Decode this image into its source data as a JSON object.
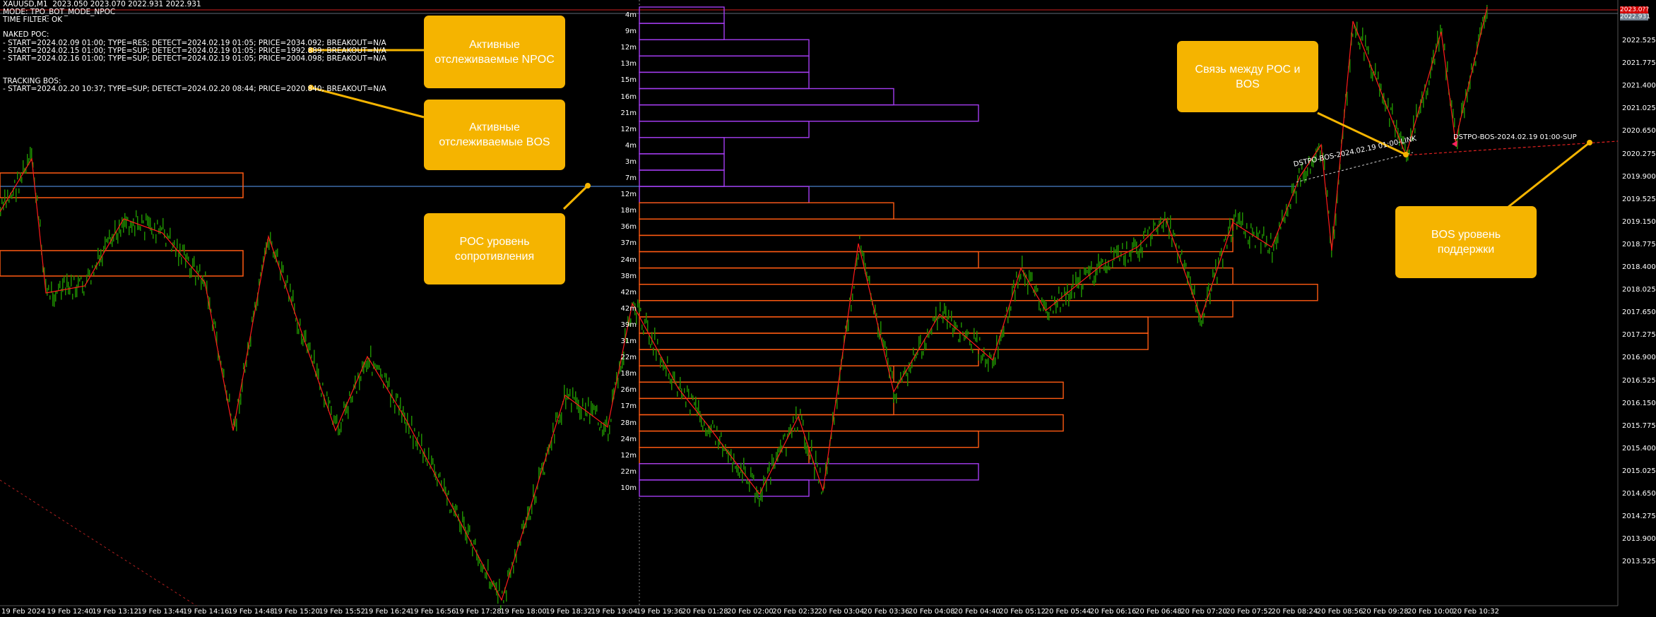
{
  "header": {
    "line1": "XAUUSD,M1  2023.050 2023.070 2022.931 2022.931",
    "line2": "MODE: TPO_BOT_MODE_NPOC",
    "line3": "TIME FILTER: OK"
  },
  "naked_poc": {
    "title": "NAKED POC:",
    "items": [
      "- START=2024.02.09 01:00; TYPE=RES; DETECT=2024.02.19 01:05; PRICE=2034.092; BREAKOUT=N/A",
      "- START=2024.02.15 01:00; TYPE=SUP; DETECT=2024.02.19 01:05; PRICE=1992.889; BREAKOUT=N/A",
      "- START=2024.02.16 01:00; TYPE=SUP; DETECT=2024.02.19 01:05; PRICE=2004.098; BREAKOUT=N/A"
    ]
  },
  "tracking_bos": {
    "title": "TRACKING BOS:",
    "items": [
      "- START=2024.02.20 10:37; TYPE=SUP; DETECT=2024.02.20 08:44; PRICE=2020.840; BREAKOUT=N/A"
    ]
  },
  "callouts": {
    "npoc": "Активные отслеживаемые NPOC",
    "bos": "Активные отслеживаемые BOS",
    "poc_level": "POC уровень сопротивления",
    "link": "Связь между POC и BOS",
    "bos_level": "BOS уровень поддержки"
  },
  "line_labels": {
    "link": "DSTPO-BOS-2024.02.19 01:00-LINK",
    "bos_sup": "DSTPO-BOS-2024.02.19 01:00-SUP"
  },
  "price_tags": {
    "ask": "2023.0??",
    "bid": "2022.931"
  },
  "y_axis": [
    "2022.525",
    "2021.775",
    "2021.400",
    "2021.025",
    "2020.650",
    "2020.275",
    "2019.900",
    "2019.525",
    "2019.150",
    "2018.775",
    "2018.400",
    "2018.025",
    "2017.650",
    "2017.275",
    "2016.900",
    "2016.525",
    "2016.150",
    "2015.775",
    "2015.400",
    "2015.025",
    "2014.650",
    "2014.275",
    "2013.900",
    "2013.525"
  ],
  "x_axis": [
    "19 Feb 2024",
    "19 Feb 12:40",
    "19 Feb 13:12",
    "19 Feb 13:44",
    "19 Feb 14:16",
    "19 Feb 14:48",
    "19 Feb 15:20",
    "19 Feb 15:52",
    "19 Feb 16:24",
    "19 Feb 16:56",
    "19 Feb 17:28",
    "19 Feb 18:00",
    "19 Feb 18:32",
    "19 Feb 19:04",
    "19 Feb 19:36",
    "20 Feb 01:28",
    "20 Feb 02:00",
    "20 Feb 02:32",
    "20 Feb 03:04",
    "20 Feb 03:36",
    "20 Feb 04:08",
    "20 Feb 04:40",
    "20 Feb 05:12",
    "20 Feb 05:44",
    "20 Feb 06:16",
    "20 Feb 06:48",
    "20 Feb 07:20",
    "20 Feb 07:52",
    "20 Feb 08:24",
    "20 Feb 08:56",
    "20 Feb 09:28",
    "20 Feb 10:00",
    "20 Feb 10:32"
  ],
  "tpo_profile": [
    {
      "label": "4m",
      "count": 4,
      "kind": "upper"
    },
    {
      "label": "9m",
      "count": 4,
      "kind": "upper"
    },
    {
      "label": "12m",
      "count": 8,
      "kind": "upper"
    },
    {
      "label": "13m",
      "count": 8,
      "kind": "upper"
    },
    {
      "label": "15m",
      "count": 8,
      "kind": "upper"
    },
    {
      "label": "16m",
      "count": 12,
      "kind": "upper"
    },
    {
      "label": "21m",
      "count": 16,
      "kind": "upper"
    },
    {
      "label": "12m",
      "count": 8,
      "kind": "upper"
    },
    {
      "label": "4m",
      "count": 4,
      "kind": "upper"
    },
    {
      "label": "3m",
      "count": 4,
      "kind": "upper"
    },
    {
      "label": "7m",
      "count": 4,
      "kind": "upper"
    },
    {
      "label": "12m",
      "count": 8,
      "kind": "upper"
    },
    {
      "label": "18m",
      "count": 12,
      "kind": "value"
    },
    {
      "label": "36m",
      "count": 28,
      "kind": "value"
    },
    {
      "label": "37m",
      "count": 28,
      "kind": "value"
    },
    {
      "label": "24m",
      "count": 16,
      "kind": "value"
    },
    {
      "label": "38m",
      "count": 28,
      "kind": "value"
    },
    {
      "label": "42m",
      "count": 32,
      "kind": "poc"
    },
    {
      "label": "42m",
      "count": 28,
      "kind": "value"
    },
    {
      "label": "39m",
      "count": 24,
      "kind": "value"
    },
    {
      "label": "31m",
      "count": 24,
      "kind": "value"
    },
    {
      "label": "22m",
      "count": 16,
      "kind": "value"
    },
    {
      "label": "18m",
      "count": 12,
      "kind": "value"
    },
    {
      "label": "26m",
      "count": 20,
      "kind": "value"
    },
    {
      "label": "17m",
      "count": 12,
      "kind": "value"
    },
    {
      "label": "28m",
      "count": 20,
      "kind": "value"
    },
    {
      "label": "24m",
      "count": 16,
      "kind": "value"
    },
    {
      "label": "12m",
      "count": 8,
      "kind": "value"
    },
    {
      "label": "22m",
      "count": 16,
      "kind": "upper"
    },
    {
      "label": "10m",
      "count": 8,
      "kind": "upper"
    }
  ],
  "colors": {
    "candles": "#1e8c00",
    "zigzag": "#ff1a1a",
    "tpo_outer": "#a43cf0",
    "tpo_value": "#ff5a12",
    "poc_line": "#4a7fc9",
    "bos_line": "#e02020",
    "callout": "#f5b400",
    "ask_tag": "#d40000",
    "bid_tag": "#708090"
  }
}
